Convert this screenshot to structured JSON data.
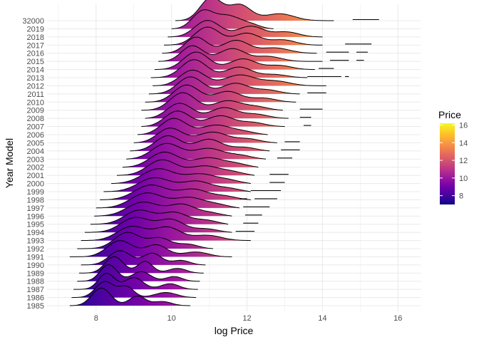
{
  "chart_data": {
    "type": "area",
    "subtype": "ridgeline",
    "xlabel": "log Price",
    "ylabel": "Year Model",
    "xlim": [
      6.7,
      16.6
    ],
    "x_ticks": [
      8,
      10,
      12,
      14,
      16
    ],
    "x_tick_labels": [
      "8",
      "10",
      "12",
      "14",
      "16"
    ],
    "y_categories": [
      "1985",
      "1986",
      "1987",
      "1988",
      "1989",
      "1990",
      "1991",
      "1992",
      "1993",
      "1994",
      "1995",
      "1996",
      "1997",
      "1998",
      "1999",
      "2000",
      "2001",
      "2002",
      "2003",
      "2004",
      "2005",
      "2006",
      "2007",
      "2008",
      "2009",
      "2010",
      "2011",
      "2012",
      "2013",
      "2014",
      "2015",
      "2016",
      "2017",
      "2018",
      "2019",
      "32000"
    ],
    "grid": true,
    "fill_gradient": "x",
    "legend": {
      "title": "Price",
      "placement": "right",
      "range": [
        7,
        16.2
      ],
      "ticks": [
        8,
        10,
        12,
        14,
        16
      ],
      "tick_labels": [
        "8",
        "10",
        "12",
        "14",
        "16"
      ],
      "colormap": "plasma",
      "colors": [
        "#0d0887",
        "#46039f",
        "#7201a8",
        "#9c179e",
        "#bd3786",
        "#d8576b",
        "#ed7953",
        "#fb9f3a",
        "#fdca26",
        "#f0f921"
      ]
    },
    "series": [
      {
        "category": "1985",
        "min": 7.3,
        "max": 10.5,
        "peaks": [
          [
            8.1,
            0.26,
            1.0
          ],
          [
            9.1,
            0.22,
            0.45
          ],
          [
            9.8,
            0.25,
            0.25
          ]
        ]
      },
      {
        "category": "1986",
        "min": 7.35,
        "max": 10.65,
        "peaks": [
          [
            8.2,
            0.25,
            0.9
          ],
          [
            8.8,
            0.2,
            0.5
          ],
          [
            9.9,
            0.3,
            0.3
          ]
        ]
      },
      {
        "category": "1987",
        "min": 7.4,
        "max": 10.7,
        "peaks": [
          [
            8.25,
            0.22,
            0.9
          ],
          [
            9.0,
            0.25,
            0.55
          ],
          [
            10.0,
            0.25,
            0.35
          ]
        ]
      },
      {
        "category": "1988",
        "min": 7.5,
        "max": 10.75,
        "peaks": [
          [
            8.3,
            0.23,
            0.95
          ],
          [
            9.2,
            0.25,
            0.45
          ],
          [
            10.1,
            0.22,
            0.3
          ]
        ]
      },
      {
        "category": "1989",
        "min": 7.55,
        "max": 10.85,
        "peaks": [
          [
            8.45,
            0.25,
            0.9
          ],
          [
            9.3,
            0.2,
            0.55
          ],
          [
            10.2,
            0.25,
            0.3
          ]
        ]
      },
      {
        "category": "1990",
        "min": 7.6,
        "max": 10.9,
        "peaks": [
          [
            8.6,
            0.3,
            0.75
          ],
          [
            9.5,
            0.25,
            0.55
          ],
          [
            10.3,
            0.25,
            0.3
          ]
        ]
      },
      {
        "category": "1991",
        "min": 7.3,
        "max": 11.6,
        "peaks": [
          [
            8.6,
            0.35,
            0.85
          ],
          [
            9.6,
            0.3,
            0.55
          ],
          [
            10.7,
            0.35,
            0.3
          ]
        ]
      },
      {
        "category": "1992",
        "min": 7.5,
        "max": 11.1,
        "peaks": [
          [
            8.8,
            0.35,
            0.8
          ],
          [
            9.7,
            0.3,
            0.5
          ],
          [
            10.5,
            0.3,
            0.3
          ]
        ]
      },
      {
        "category": "1993",
        "min": 7.6,
        "max": 12.1,
        "peaks": [
          [
            8.9,
            0.4,
            0.75
          ],
          [
            9.9,
            0.35,
            0.6
          ],
          [
            11.0,
            0.4,
            0.3
          ]
        ]
      },
      {
        "category": "1994",
        "min": 7.7,
        "max": 11.6,
        "peaks": [
          [
            9.0,
            0.4,
            0.75
          ],
          [
            10.0,
            0.35,
            0.6
          ],
          [
            11.0,
            0.35,
            0.25
          ]
        ]
      },
      {
        "category": "1995",
        "min": 7.85,
        "max": 11.5,
        "peaks": [
          [
            9.1,
            0.4,
            0.7
          ],
          [
            10.1,
            0.35,
            0.55
          ],
          [
            11.0,
            0.35,
            0.3
          ]
        ]
      },
      {
        "category": "1996",
        "min": 7.95,
        "max": 11.6,
        "peaks": [
          [
            9.2,
            0.45,
            0.7
          ],
          [
            10.3,
            0.35,
            0.55
          ],
          [
            11.1,
            0.35,
            0.25
          ]
        ]
      },
      {
        "category": "1997",
        "min": 8.0,
        "max": 11.8,
        "peaks": [
          [
            9.3,
            0.45,
            0.75
          ],
          [
            10.5,
            0.4,
            0.5
          ],
          [
            11.3,
            0.35,
            0.25
          ]
        ]
      },
      {
        "category": "1998",
        "min": 8.1,
        "max": 12.1,
        "peaks": [
          [
            9.4,
            0.45,
            0.75
          ],
          [
            10.6,
            0.4,
            0.5
          ],
          [
            11.5,
            0.35,
            0.25
          ]
        ]
      },
      {
        "category": "1999",
        "min": 8.2,
        "max": 12.1,
        "peaks": [
          [
            9.5,
            0.45,
            0.7
          ],
          [
            10.7,
            0.4,
            0.5
          ],
          [
            11.6,
            0.35,
            0.25
          ]
        ]
      },
      {
        "category": "2000",
        "min": 8.4,
        "max": 12.1,
        "peaks": [
          [
            9.6,
            0.45,
            0.75
          ],
          [
            10.8,
            0.4,
            0.45
          ],
          [
            11.6,
            0.35,
            0.25
          ]
        ]
      },
      {
        "category": "2001",
        "min": 8.55,
        "max": 12.2,
        "peaks": [
          [
            9.7,
            0.4,
            0.8
          ],
          [
            10.9,
            0.4,
            0.45
          ],
          [
            11.7,
            0.35,
            0.25
          ]
        ]
      },
      {
        "category": "2002",
        "min": 8.7,
        "max": 12.3,
        "peaks": [
          [
            9.75,
            0.4,
            0.8
          ],
          [
            11.0,
            0.4,
            0.45
          ],
          [
            11.8,
            0.35,
            0.25
          ]
        ]
      },
      {
        "category": "2003",
        "min": 8.8,
        "max": 12.5,
        "peaks": [
          [
            9.8,
            0.4,
            0.85
          ],
          [
            11.0,
            0.4,
            0.5
          ],
          [
            11.9,
            0.35,
            0.25
          ]
        ]
      },
      {
        "category": "2004",
        "min": 8.9,
        "max": 12.6,
        "peaks": [
          [
            9.85,
            0.35,
            0.85
          ],
          [
            11.0,
            0.35,
            0.55
          ],
          [
            12.0,
            0.35,
            0.25
          ]
        ]
      },
      {
        "category": "2005",
        "min": 9.0,
        "max": 12.8,
        "peaks": [
          [
            9.9,
            0.35,
            0.85
          ],
          [
            11.1,
            0.4,
            0.5
          ],
          [
            12.1,
            0.35,
            0.25
          ]
        ]
      },
      {
        "category": "2006",
        "min": 9.1,
        "max": 12.55,
        "peaks": [
          [
            10.0,
            0.35,
            0.9
          ],
          [
            11.2,
            0.4,
            0.45
          ],
          [
            12.0,
            0.35,
            0.2
          ]
        ]
      },
      {
        "category": "2007",
        "min": 9.2,
        "max": 13.0,
        "peaks": [
          [
            10.1,
            0.35,
            0.9
          ],
          [
            11.3,
            0.35,
            0.5
          ],
          [
            12.2,
            0.35,
            0.25
          ]
        ]
      },
      {
        "category": "2008",
        "min": 9.3,
        "max": 13.1,
        "peaks": [
          [
            10.15,
            0.35,
            0.9
          ],
          [
            11.4,
            0.35,
            0.5
          ],
          [
            12.3,
            0.35,
            0.25
          ]
        ]
      },
      {
        "category": "2009",
        "min": 9.2,
        "max": 12.95,
        "peaks": [
          [
            10.25,
            0.35,
            0.95
          ],
          [
            11.5,
            0.35,
            0.45
          ],
          [
            12.3,
            0.35,
            0.25
          ]
        ]
      },
      {
        "category": "2010",
        "min": 9.3,
        "max": 13.3,
        "peaks": [
          [
            10.35,
            0.35,
            0.95
          ],
          [
            11.5,
            0.35,
            0.5
          ],
          [
            12.5,
            0.35,
            0.25
          ]
        ]
      },
      {
        "category": "2011",
        "min": 9.4,
        "max": 13.4,
        "peaks": [
          [
            10.45,
            0.35,
            0.95
          ],
          [
            11.7,
            0.35,
            0.5
          ],
          [
            12.6,
            0.35,
            0.25
          ]
        ]
      },
      {
        "category": "2012",
        "min": 9.5,
        "max": 14.1,
        "peaks": [
          [
            10.5,
            0.35,
            0.95
          ],
          [
            11.8,
            0.4,
            0.5
          ],
          [
            12.8,
            0.4,
            0.25
          ]
        ]
      },
      {
        "category": "2013",
        "min": 9.45,
        "max": 13.6,
        "peaks": [
          [
            10.55,
            0.35,
            1.0
          ],
          [
            11.8,
            0.35,
            0.5
          ],
          [
            12.8,
            0.35,
            0.2
          ]
        ]
      },
      {
        "category": "2014",
        "min": 9.55,
        "max": 13.8,
        "peaks": [
          [
            10.6,
            0.35,
            1.0
          ],
          [
            11.9,
            0.35,
            0.5
          ],
          [
            12.9,
            0.35,
            0.25
          ]
        ]
      },
      {
        "category": "2015",
        "min": 9.65,
        "max": 14.0,
        "peaks": [
          [
            10.5,
            0.3,
            1.0
          ],
          [
            11.6,
            0.35,
            0.6
          ],
          [
            12.6,
            0.35,
            0.25
          ]
        ]
      },
      {
        "category": "2016",
        "min": 9.75,
        "max": 13.85,
        "peaks": [
          [
            10.6,
            0.3,
            1.0
          ],
          [
            11.7,
            0.35,
            0.6
          ],
          [
            12.8,
            0.4,
            0.3
          ]
        ]
      },
      {
        "category": "2017",
        "min": 9.8,
        "max": 14.0,
        "peaks": [
          [
            10.9,
            0.35,
            1.0
          ],
          [
            12.0,
            0.35,
            0.55
          ],
          [
            13.0,
            0.35,
            0.3
          ]
        ]
      },
      {
        "category": "2018",
        "min": 9.9,
        "max": 14.0,
        "peaks": [
          [
            10.9,
            0.35,
            0.95
          ],
          [
            12.1,
            0.35,
            0.5
          ],
          [
            13.1,
            0.35,
            0.3
          ]
        ]
      },
      {
        "category": "2019",
        "min": 10.0,
        "max": 12.7,
        "peaks": [
          [
            10.8,
            0.3,
            0.95
          ],
          [
            11.5,
            0.3,
            0.55
          ],
          [
            12.1,
            0.3,
            0.3
          ]
        ]
      },
      {
        "category": "32000",
        "min": 10.1,
        "max": 14.3,
        "peaks": [
          [
            11.0,
            0.3,
            1.4
          ],
          [
            11.8,
            0.3,
            0.75
          ],
          [
            12.9,
            0.4,
            0.35
          ]
        ]
      }
    ],
    "outliers": [
      {
        "category": "1994",
        "segments": [
          [
            11.7,
            12.2
          ]
        ]
      },
      {
        "category": "1995",
        "segments": [
          [
            11.9,
            12.3
          ]
        ]
      },
      {
        "category": "1996",
        "segments": [
          [
            11.95,
            12.4
          ]
        ]
      },
      {
        "category": "1997",
        "segments": [
          [
            11.9,
            12.6
          ]
        ]
      },
      {
        "category": "1998",
        "segments": [
          [
            11.8,
            12.0
          ],
          [
            12.2,
            12.8
          ]
        ]
      },
      {
        "category": "1999",
        "segments": [
          [
            12.1,
            12.9
          ]
        ]
      },
      {
        "category": "2000",
        "segments": [
          [
            12.6,
            13.0
          ]
        ]
      },
      {
        "category": "2001",
        "segments": [
          [
            12.6,
            13.1
          ]
        ]
      },
      {
        "category": "2003",
        "segments": [
          [
            12.8,
            13.2
          ]
        ]
      },
      {
        "category": "2004",
        "segments": [
          [
            12.9,
            13.4
          ]
        ]
      },
      {
        "category": "2005",
        "segments": [
          [
            13.0,
            13.4
          ]
        ]
      },
      {
        "category": "2007",
        "segments": [
          [
            13.5,
            13.7
          ]
        ]
      },
      {
        "category": "2008",
        "segments": [
          [
            13.4,
            13.7
          ]
        ]
      },
      {
        "category": "2009",
        "segments": [
          [
            13.4,
            14.0
          ]
        ]
      },
      {
        "category": "2011",
        "segments": [
          [
            13.6,
            14.1
          ]
        ]
      },
      {
        "category": "2013",
        "segments": [
          [
            13.6,
            14.5
          ],
          [
            14.6,
            14.7
          ]
        ]
      },
      {
        "category": "2014",
        "segments": [
          [
            13.9,
            14.3
          ]
        ]
      },
      {
        "category": "2015",
        "segments": [
          [
            14.2,
            14.7
          ],
          [
            14.9,
            15.1
          ]
        ]
      },
      {
        "category": "2016",
        "segments": [
          [
            14.1,
            14.7
          ],
          [
            14.9,
            15.2
          ]
        ]
      },
      {
        "category": "2017",
        "segments": [
          [
            14.6,
            15.3
          ]
        ]
      },
      {
        "category": "32000",
        "segments": [
          [
            14.8,
            15.5
          ]
        ]
      }
    ]
  }
}
